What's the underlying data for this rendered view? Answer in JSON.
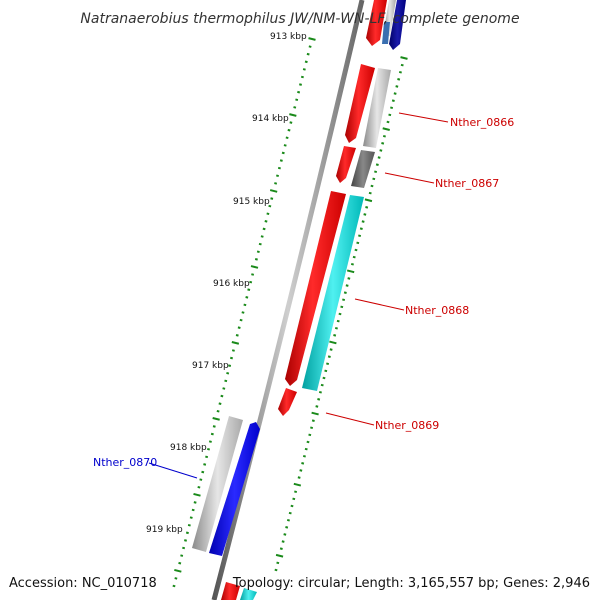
{
  "title": "Natranaerobius thermophilus JW/NM-WN-LF, complete genome",
  "accession": "Accession: NC_010718",
  "topology": "Topology: circular; Length: 3,165,557 bp; Genes: 2,946",
  "ticks": [
    "913 kbp",
    "914 kbp",
    "915 kbp",
    "916 kbp",
    "917 kbp",
    "918 kbp",
    "919 kbp"
  ],
  "genes": [
    {
      "label": "Nther_0866",
      "color": "#cc0000"
    },
    {
      "label": "Nther_0867",
      "color": "#cc0000"
    },
    {
      "label": "Nther_0868",
      "color": "#cc0000"
    },
    {
      "label": "Nther_0869",
      "color": "#cc0000"
    },
    {
      "label": "Nther_0870",
      "color": "#0000cc"
    }
  ],
  "colors": {
    "backbone": "#777777",
    "ticks": "#1a8a1a",
    "forward_cds": "#ff0000",
    "gene_feature": "#bbbbbb",
    "rna": "#00cccc",
    "reverse_cds": "#0000ff"
  }
}
